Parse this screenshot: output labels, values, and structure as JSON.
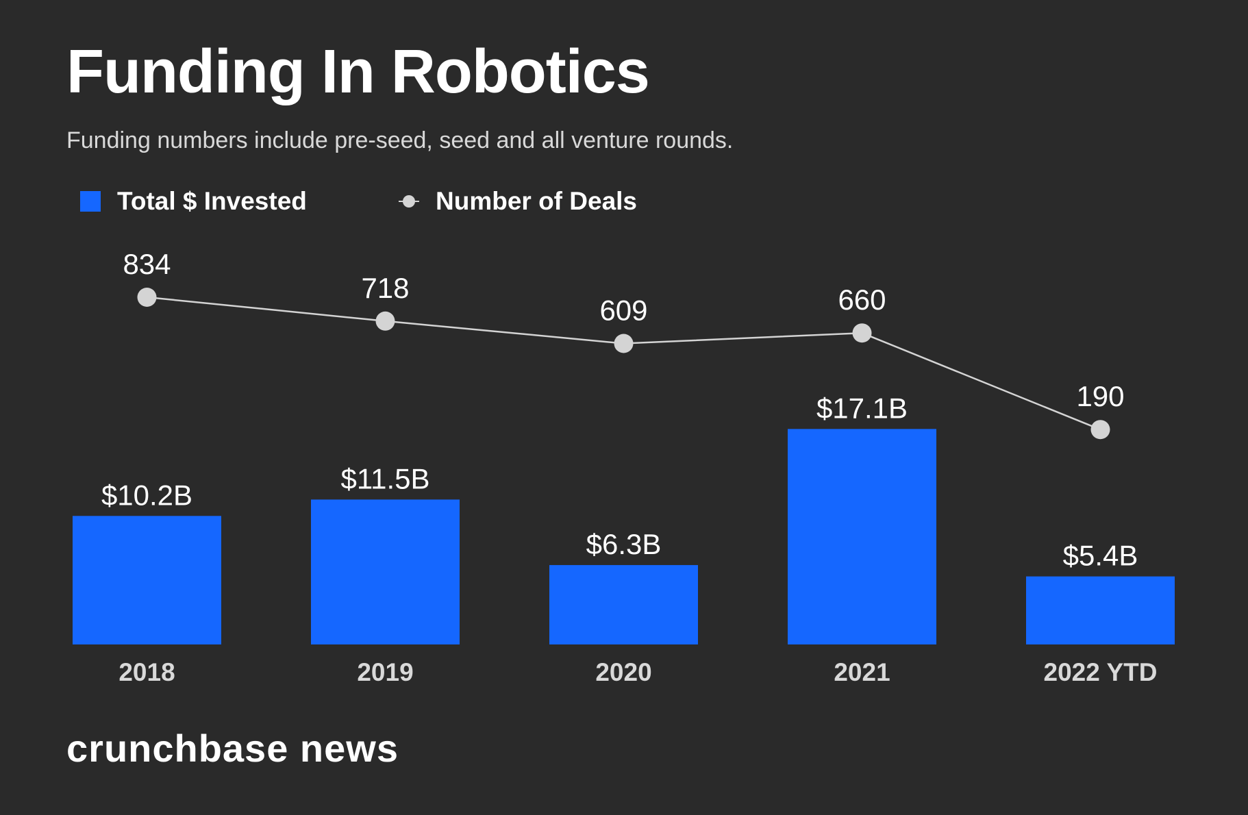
{
  "header": {
    "title": "Funding In Robotics",
    "subtitle": "Funding numbers include pre-seed, seed and all venture rounds."
  },
  "legend": {
    "bars_label": "Total $ Invested",
    "line_label": "Number of Deals"
  },
  "brand": {
    "name": "crunchbase news"
  },
  "colors": {
    "background": "#2a2a2a",
    "bar": "#1567ff",
    "line": "#d4d4d4",
    "text": "#ffffff",
    "axis_text": "#d9d9d9"
  },
  "chart_data": {
    "type": "bar",
    "title": "Funding In Robotics",
    "subtitle": "Funding numbers include pre-seed, seed and all venture rounds.",
    "categories": [
      "2018",
      "2019",
      "2020",
      "2021",
      "2022 YTD"
    ],
    "series": [
      {
        "name": "Total $ Invested",
        "type": "bar",
        "unit": "$B",
        "values": [
          10.2,
          11.5,
          6.3,
          17.1,
          5.4
        ],
        "labels": [
          "$10.2B",
          "$11.5B",
          "$6.3B",
          "$17.1B",
          "$5.4B"
        ]
      },
      {
        "name": "Number of Deals",
        "type": "line",
        "values": [
          834,
          718,
          609,
          660,
          190
        ],
        "labels": [
          "834",
          "718",
          "609",
          "660",
          "190"
        ]
      }
    ],
    "legend": "top-left",
    "grid": false
  }
}
